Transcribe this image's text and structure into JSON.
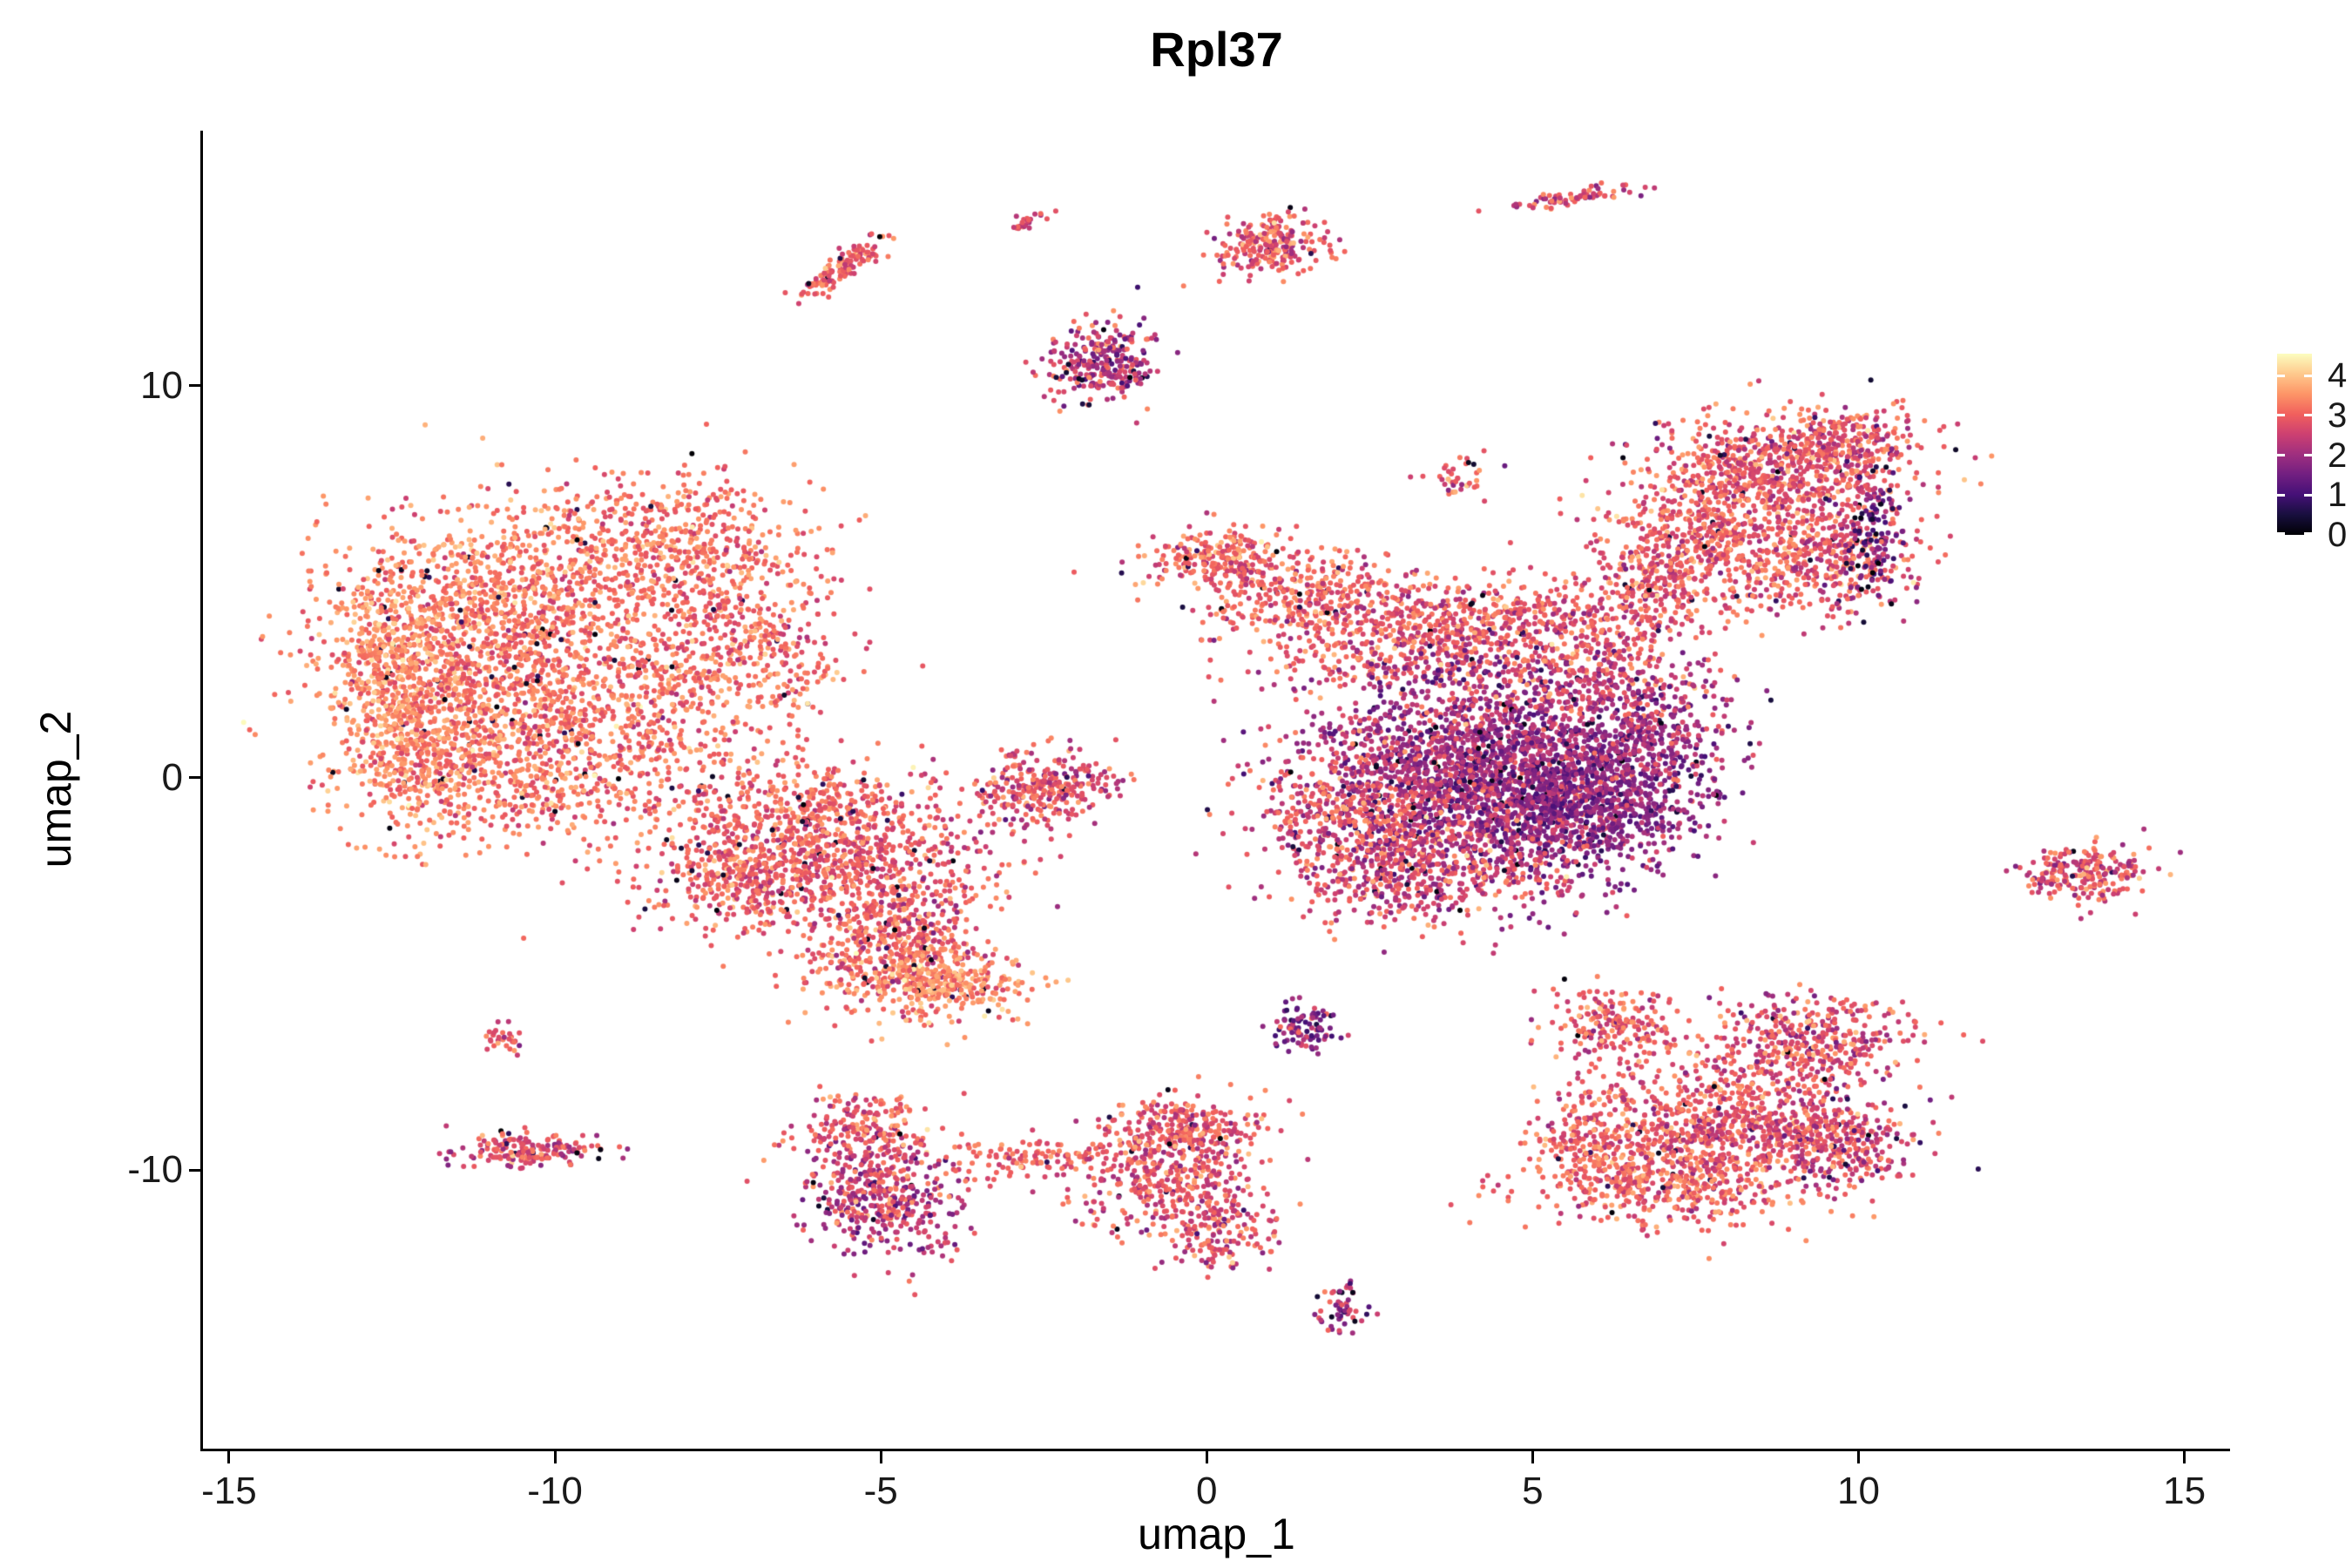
{
  "title": "Rpl37",
  "axes": {
    "xlabel": "umap_1",
    "ylabel": "umap_2"
  },
  "colors": {
    "background": "#ffffff",
    "axis_line": "#000000",
    "tick_text": "#1a1a1a"
  },
  "chart_data": {
    "type": "scatter",
    "title": "Rpl37",
    "xlabel": "umap_1",
    "ylabel": "umap_2",
    "xlim": [
      -15.4,
      15.7
    ],
    "ylim": [
      -17.1,
      16.5
    ],
    "x_ticks": [
      -15,
      -10,
      -5,
      0,
      5,
      10,
      15
    ],
    "y_ticks": [
      -10,
      0,
      10
    ],
    "grid": false,
    "legend_position": "right",
    "legend_ticks": [
      4,
      3,
      2,
      1,
      0
    ],
    "point_radius_px": 3,
    "dropout_rate": 0.02,
    "seed": 1337,
    "color_scale": {
      "name": "magma",
      "domain": [
        0,
        4.55
      ],
      "stops": [
        "#000004",
        "#180f3e",
        "#451077",
        "#721f81",
        "#9f2f7f",
        "#cd4071",
        "#f1605d",
        "#fd9567",
        "#fec98d",
        "#fcfdbf"
      ]
    },
    "clusters": [
      {
        "name": "left-main-1",
        "n": 1200,
        "cx": -11.4,
        "cy": 3.0,
        "sx": 1.1,
        "sy": 1.7,
        "expr": 3.25,
        "esd": 0.4
      },
      {
        "name": "left-main-2",
        "n": 950,
        "cx": -9.2,
        "cy": 2.0,
        "sx": 1.5,
        "sy": 1.6,
        "expr": 3.15,
        "esd": 0.4
      },
      {
        "name": "left-main-3",
        "n": 500,
        "cx": -8.2,
        "cy": 6.1,
        "sx": 1.0,
        "sy": 0.9,
        "expr": 3.2,
        "esd": 0.4
      },
      {
        "name": "left-main-4",
        "n": 420,
        "cx": -12.5,
        "cy": 2.4,
        "sx": 0.5,
        "sy": 1.6,
        "expr": 3.45,
        "esd": 0.35
      },
      {
        "name": "left-main-5",
        "n": 350,
        "cx": -7.1,
        "cy": 3.6,
        "sx": 0.8,
        "sy": 1.1,
        "expr": 3.1,
        "esd": 0.4
      },
      {
        "name": "left-main-6",
        "n": 250,
        "cx": -10.3,
        "cy": 5.2,
        "sx": 1.0,
        "sy": 0.8,
        "expr": 3.3,
        "esd": 0.4
      },
      {
        "name": "left-main-7",
        "n": 200,
        "cx": -12.1,
        "cy": 0.2,
        "sx": 0.5,
        "sy": 0.9,
        "expr": 3.3,
        "esd": 0.4
      },
      {
        "name": "left-main-8",
        "n": 250,
        "cx": -10.5,
        "cy": 0.0,
        "sx": 1.2,
        "sy": 0.7,
        "expr": 3.2,
        "esd": 0.45
      },
      {
        "name": "midleft-1",
        "n": 650,
        "cx": -5.6,
        "cy": -2.1,
        "sx": 1.1,
        "sy": 0.8,
        "expr": 2.9,
        "esd": 0.45
      },
      {
        "name": "midleft-2",
        "n": 400,
        "cx": -7.0,
        "cy": -2.4,
        "sx": 0.8,
        "sy": 0.8,
        "expr": 3.0,
        "esd": 0.4
      },
      {
        "name": "midleft-3",
        "n": 450,
        "cx": -4.8,
        "cy": -4.7,
        "sx": 0.7,
        "sy": 0.7,
        "expr": 3.1,
        "esd": 0.5
      },
      {
        "name": "midleft-4",
        "n": 220,
        "cx": -3.9,
        "cy": -5.3,
        "sx": 0.55,
        "sy": 0.4,
        "expr": 3.5,
        "esd": 0.4
      },
      {
        "name": "midleft-5",
        "n": 260,
        "cx": -6.1,
        "cy": -0.6,
        "sx": 1.0,
        "sy": 0.5,
        "expr": 3.0,
        "esd": 0.4
      },
      {
        "name": "midleft-6",
        "n": 120,
        "cx": -4.6,
        "cy": -3.4,
        "sx": 0.5,
        "sy": 0.5,
        "expr": 2.8,
        "esd": 0.5
      },
      {
        "name": "mid-small-1",
        "n": 220,
        "cx": -2.7,
        "cy": -0.3,
        "sx": 0.5,
        "sy": 0.55,
        "expr": 2.8,
        "esd": 0.5
      },
      {
        "name": "mid-small-2",
        "n": 80,
        "cx": -1.9,
        "cy": -0.1,
        "sx": 0.35,
        "sy": 0.3,
        "expr": 2.7,
        "esd": 0.5
      },
      {
        "name": "top-streak-1",
        "n": 130,
        "cx": -5.6,
        "cy": 13.0,
        "sx": 0.55,
        "sy": 0.13,
        "angle": 50,
        "expr": 3.0,
        "esd": 0.4
      },
      {
        "name": "top-dot",
        "n": 25,
        "cx": -2.75,
        "cy": 14.15,
        "sx": 0.18,
        "sy": 0.08,
        "angle": 40,
        "expr": 2.8,
        "esd": 0.4
      },
      {
        "name": "top-blob",
        "n": 240,
        "cx": 1.0,
        "cy": 13.6,
        "sx": 0.45,
        "sy": 0.4,
        "expr": 2.85,
        "esd": 0.55
      },
      {
        "name": "top-streak-2",
        "n": 70,
        "cx": 5.6,
        "cy": 14.8,
        "sx": 0.5,
        "sy": 0.1,
        "angle": 15,
        "expr": 2.7,
        "esd": 0.5
      },
      {
        "name": "top-purple",
        "n": 280,
        "cx": -1.6,
        "cy": 10.6,
        "sx": 0.42,
        "sy": 0.55,
        "expr": 2.3,
        "esd": 0.7
      },
      {
        "name": "small-mid-top",
        "n": 40,
        "cx": 3.9,
        "cy": 7.7,
        "sx": 0.25,
        "sy": 0.22,
        "expr": 2.8,
        "esd": 0.6
      },
      {
        "name": "center-tail-1",
        "n": 250,
        "cx": 0.3,
        "cy": 5.6,
        "sx": 0.6,
        "sy": 0.4,
        "expr": 3.0,
        "esd": 0.45
      },
      {
        "name": "center-tail-2",
        "n": 300,
        "cx": 1.6,
        "cy": 4.6,
        "sx": 0.8,
        "sy": 0.55,
        "expr": 3.05,
        "esd": 0.45
      },
      {
        "name": "center-band-1",
        "n": 450,
        "cx": 3.0,
        "cy": 3.4,
        "sx": 1.2,
        "sy": 0.7,
        "expr": 2.9,
        "esd": 0.5
      },
      {
        "name": "center-band-2",
        "n": 300,
        "cx": 4.6,
        "cy": 4.1,
        "sx": 1.1,
        "sy": 0.5,
        "expr": 2.9,
        "esd": 0.5
      },
      {
        "name": "center-core",
        "n": 2100,
        "cx": 4.4,
        "cy": 0.3,
        "sx": 1.35,
        "sy": 1.3,
        "expr": 2.0,
        "esd": 0.55
      },
      {
        "name": "center-core-dark",
        "n": 800,
        "cx": 5.8,
        "cy": -0.6,
        "sx": 0.9,
        "sy": 0.9,
        "expr": 1.75,
        "esd": 0.5
      },
      {
        "name": "center-fringe-1",
        "n": 600,
        "cx": 2.5,
        "cy": -1.0,
        "sx": 0.9,
        "sy": 1.0,
        "expr": 2.75,
        "esd": 0.5
      },
      {
        "name": "center-fringe-2",
        "n": 420,
        "cx": 3.4,
        "cy": -2.4,
        "sx": 1.0,
        "sy": 0.6,
        "expr": 2.6,
        "esd": 0.55
      },
      {
        "name": "center-bridge",
        "n": 300,
        "cx": 6.1,
        "cy": 3.0,
        "sx": 0.8,
        "sy": 0.8,
        "expr": 2.7,
        "esd": 0.55
      },
      {
        "name": "center-right-lobe",
        "n": 300,
        "cx": 6.9,
        "cy": 1.2,
        "sx": 0.6,
        "sy": 0.9,
        "expr": 2.1,
        "esd": 0.55
      },
      {
        "name": "upright-1",
        "n": 700,
        "cx": 8.7,
        "cy": 7.8,
        "sx": 1.0,
        "sy": 0.75,
        "expr": 2.9,
        "esd": 0.5
      },
      {
        "name": "upright-2",
        "n": 500,
        "cx": 7.6,
        "cy": 6.0,
        "sx": 0.9,
        "sy": 0.8,
        "expr": 3.0,
        "esd": 0.45
      },
      {
        "name": "upright-3",
        "n": 350,
        "cx": 9.5,
        "cy": 5.5,
        "sx": 0.7,
        "sy": 0.65,
        "expr": 2.8,
        "esd": 0.5
      },
      {
        "name": "upright-dark-edge",
        "n": 130,
        "cx": 10.2,
        "cy": 6.4,
        "sx": 0.25,
        "sy": 0.85,
        "expr": 1.3,
        "esd": 0.7
      },
      {
        "name": "upright-4",
        "n": 200,
        "cx": 9.8,
        "cy": 8.6,
        "sx": 0.6,
        "sy": 0.4,
        "expr": 2.85,
        "esd": 0.5
      },
      {
        "name": "upright-5",
        "n": 160,
        "cx": 7.0,
        "cy": 4.8,
        "sx": 0.5,
        "sy": 0.5,
        "expr": 2.8,
        "esd": 0.5
      },
      {
        "name": "far-right",
        "n": 230,
        "cx": 13.5,
        "cy": -2.4,
        "sx": 0.45,
        "sy": 0.38,
        "expr": 2.75,
        "esd": 0.55
      },
      {
        "name": "botright-1",
        "n": 800,
        "cx": 8.0,
        "cy": -8.8,
        "sx": 1.15,
        "sy": 0.9,
        "expr": 2.85,
        "esd": 0.5
      },
      {
        "name": "botright-2",
        "n": 450,
        "cx": 7.0,
        "cy": -10.3,
        "sx": 1.0,
        "sy": 0.6,
        "expr": 3.0,
        "esd": 0.45
      },
      {
        "name": "botright-3",
        "n": 350,
        "cx": 9.3,
        "cy": -6.7,
        "sx": 0.8,
        "sy": 0.6,
        "expr": 2.7,
        "esd": 0.55
      },
      {
        "name": "botright-4",
        "n": 200,
        "cx": 6.3,
        "cy": -6.3,
        "sx": 0.5,
        "sy": 0.45,
        "expr": 2.9,
        "esd": 0.5
      },
      {
        "name": "botright-5",
        "n": 260,
        "cx": 9.6,
        "cy": -9.4,
        "sx": 0.6,
        "sy": 0.55,
        "expr": 2.55,
        "esd": 0.55
      },
      {
        "name": "botright-6",
        "n": 150,
        "cx": 5.9,
        "cy": -9.1,
        "sx": 0.4,
        "sy": 0.6,
        "expr": 3.0,
        "esd": 0.45
      },
      {
        "name": "botmid-purple",
        "n": 420,
        "cx": -5.0,
        "cy": -10.7,
        "sx": 0.6,
        "sy": 0.7,
        "expr": 2.4,
        "esd": 0.65
      },
      {
        "name": "botmid-top",
        "n": 200,
        "cx": -5.3,
        "cy": -9.0,
        "sx": 0.5,
        "sy": 0.45,
        "expr": 2.9,
        "esd": 0.5
      },
      {
        "name": "botleft-streak",
        "n": 180,
        "cx": -10.4,
        "cy": -9.5,
        "sx": 0.55,
        "sy": 0.22,
        "expr": 2.7,
        "esd": 0.5
      },
      {
        "name": "botleft-dot",
        "n": 30,
        "cx": -10.8,
        "cy": -6.6,
        "sx": 0.16,
        "sy": 0.2,
        "expr": 2.9,
        "esd": 0.4
      },
      {
        "name": "botmid-right-1",
        "n": 420,
        "cx": -0.6,
        "cy": -10.1,
        "sx": 0.7,
        "sy": 0.85,
        "expr": 2.8,
        "esd": 0.5
      },
      {
        "name": "botmid-right-2",
        "n": 200,
        "cx": -0.3,
        "cy": -8.9,
        "sx": 0.55,
        "sy": 0.4,
        "expr": 2.9,
        "esd": 0.45
      },
      {
        "name": "botmid-bridge",
        "n": 120,
        "cx": -2.6,
        "cy": -9.7,
        "sx": 0.8,
        "sy": 0.25,
        "expr": 3.0,
        "esd": 0.4
      },
      {
        "name": "botmid-right-3",
        "n": 150,
        "cx": 0.2,
        "cy": -11.6,
        "sx": 0.4,
        "sy": 0.5,
        "expr": 2.7,
        "esd": 0.5
      },
      {
        "name": "bottom-tiny",
        "n": 55,
        "cx": 2.1,
        "cy": -13.5,
        "sx": 0.18,
        "sy": 0.3,
        "expr": 2.0,
        "esd": 0.7
      },
      {
        "name": "small-dark-mid",
        "n": 90,
        "cx": 1.45,
        "cy": -6.35,
        "sx": 0.25,
        "sy": 0.28,
        "expr": 1.8,
        "esd": 0.6
      }
    ]
  }
}
